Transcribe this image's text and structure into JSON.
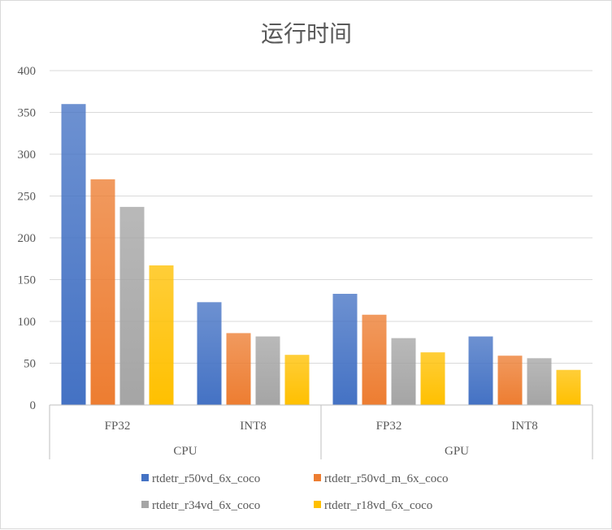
{
  "chart_data": {
    "type": "bar",
    "title": "运行时间",
    "xlabel": "",
    "ylabel": "",
    "ylim": [
      0,
      400
    ],
    "yticks": [
      0,
      50,
      100,
      150,
      200,
      250,
      300,
      350,
      400
    ],
    "grid": true,
    "legend_position": "bottom",
    "groups": [
      {
        "label": "CPU",
        "categories": [
          "FP32",
          "INT8"
        ]
      },
      {
        "label": "GPU",
        "categories": [
          "FP32",
          "INT8"
        ]
      }
    ],
    "categories": [
      "CPU FP32",
      "CPU INT8",
      "GPU FP32",
      "GPU INT8"
    ],
    "series": [
      {
        "name": "rtdetr_r50vd_6x_coco",
        "color": "#4472c4",
        "values": [
          360,
          123,
          133,
          82
        ]
      },
      {
        "name": "rtdetr_r50vd_m_6x_coco",
        "color": "#ed7d31",
        "values": [
          270,
          86,
          108,
          59
        ]
      },
      {
        "name": "rtdetr_r34vd_6x_coco",
        "color": "#a5a5a5",
        "values": [
          237,
          82,
          80,
          56
        ]
      },
      {
        "name": "rtdetr_r18vd_6x_coco",
        "color": "#ffc000",
        "values": [
          167,
          60,
          63,
          42
        ]
      }
    ]
  }
}
